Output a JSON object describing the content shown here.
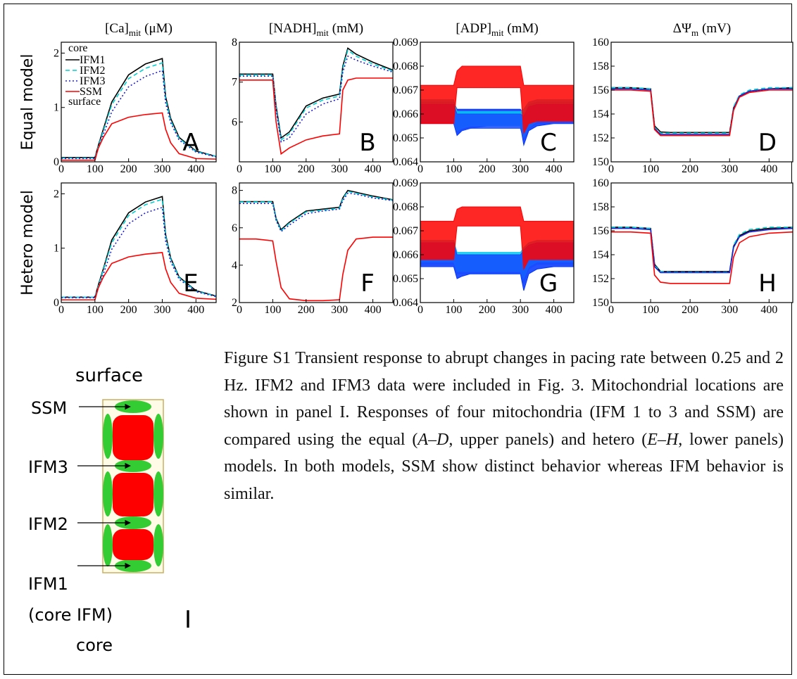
{
  "row_labels": [
    "Equal model",
    "Hetero model"
  ],
  "chart_data": [
    {
      "type": "line",
      "title": {
        "main": "[Ca]",
        "sub": "mit",
        "unit": "(μM)"
      },
      "panel": "A",
      "legend": "upper left",
      "annotations": [
        "core",
        "surface"
      ],
      "xlim": [
        0,
        460
      ],
      "xticks": [
        0,
        100,
        200,
        300,
        400
      ],
      "ylim": [
        0,
        2.2
      ],
      "yticks": [
        0,
        1,
        2
      ],
      "x": [
        0,
        50,
        100,
        110,
        125,
        150,
        200,
        250,
        300,
        310,
        325,
        350,
        400,
        460
      ],
      "series": [
        {
          "name": "IFM1",
          "color": "#000000",
          "style": "solid",
          "values": [
            0.08,
            0.08,
            0.08,
            0.3,
            0.6,
            1.1,
            1.6,
            1.8,
            1.9,
            1.2,
            0.8,
            0.45,
            0.2,
            0.1
          ]
        },
        {
          "name": "IFM2",
          "color": "#00d0d0",
          "style": "dashed",
          "values": [
            0.07,
            0.07,
            0.07,
            0.28,
            0.57,
            1.05,
            1.53,
            1.72,
            1.82,
            1.15,
            0.76,
            0.43,
            0.19,
            0.1
          ]
        },
        {
          "name": "IFM3",
          "color": "#2020d0",
          "style": "dotted",
          "values": [
            0.06,
            0.06,
            0.06,
            0.25,
            0.5,
            0.92,
            1.38,
            1.57,
            1.68,
            1.08,
            0.72,
            0.4,
            0.18,
            0.09
          ]
        },
        {
          "name": "SSM",
          "color": "#ff0000",
          "style": "solid",
          "values": [
            0.03,
            0.03,
            0.03,
            0.25,
            0.45,
            0.7,
            0.82,
            0.87,
            0.9,
            0.6,
            0.35,
            0.15,
            0.06,
            0.05
          ]
        }
      ]
    },
    {
      "type": "line",
      "title": {
        "main": "[NADH]",
        "sub": "mit",
        "unit": "(mM)"
      },
      "panel": "B",
      "xlim": [
        0,
        460
      ],
      "xticks": [
        0,
        100,
        200,
        300,
        400
      ],
      "ylim": [
        5,
        8
      ],
      "yticks": [
        6,
        7,
        8
      ],
      "x": [
        0,
        50,
        100,
        110,
        125,
        150,
        200,
        250,
        300,
        310,
        325,
        350,
        400,
        460
      ],
      "series": [
        {
          "color": "#000000",
          "style": "solid",
          "values": [
            7.2,
            7.2,
            7.2,
            6.4,
            5.6,
            5.75,
            6.4,
            6.6,
            6.7,
            7.4,
            7.85,
            7.7,
            7.5,
            7.3
          ]
        },
        {
          "color": "#00d0d0",
          "style": "dashed",
          "values": [
            7.18,
            7.18,
            7.18,
            6.35,
            5.55,
            5.7,
            6.35,
            6.55,
            6.65,
            7.35,
            7.8,
            7.65,
            7.45,
            7.28
          ]
        },
        {
          "color": "#2020d0",
          "style": "dotted",
          "values": [
            7.15,
            7.15,
            7.15,
            6.3,
            5.5,
            5.6,
            6.2,
            6.45,
            6.58,
            7.25,
            7.65,
            7.55,
            7.4,
            7.25
          ]
        },
        {
          "color": "#ff0000",
          "style": "solid",
          "values": [
            7.05,
            7.05,
            7.05,
            6.0,
            5.2,
            5.35,
            5.55,
            5.65,
            5.7,
            6.8,
            7.05,
            7.1,
            7.1,
            7.1
          ]
        }
      ]
    },
    {
      "type": "band",
      "title": {
        "main": "[ADP]",
        "sub": "mit",
        "unit": "(mM)"
      },
      "panel": "C",
      "xlim": [
        0,
        460
      ],
      "xticks": [
        0,
        100,
        200,
        300,
        400
      ],
      "ylim": [
        0.064,
        0.069
      ],
      "yticks": [
        0.064,
        0.065,
        0.066,
        0.067,
        0.068,
        0.069
      ],
      "x": [
        0,
        50,
        100,
        110,
        125,
        150,
        200,
        250,
        300,
        310,
        325,
        350,
        400,
        460
      ],
      "series": [
        {
          "color": "#0033ff",
          "upper": [
            0.0665,
            0.0665,
            0.0665,
            0.0662,
            0.0662,
            0.0662,
            0.0662,
            0.0662,
            0.0662,
            0.066,
            0.0664,
            0.0665,
            0.0665,
            0.0665
          ],
          "lower": [
            0.0656,
            0.0656,
            0.0656,
            0.0651,
            0.0653,
            0.0654,
            0.0655,
            0.0655,
            0.0655,
            0.0647,
            0.0653,
            0.0655,
            0.0656,
            0.0656
          ]
        },
        {
          "color": "#00ccee",
          "upper": [
            0.0666,
            0.0666,
            0.0666,
            0.0661,
            0.0661,
            0.0661,
            0.0661,
            0.0661,
            0.0661,
            0.0662,
            0.0665,
            0.0666,
            0.0666,
            0.0666
          ],
          "lower": [
            0.0657,
            0.0657,
            0.0657,
            0.0653,
            0.0654,
            0.0655,
            0.0655,
            0.0655,
            0.0655,
            0.065,
            0.0654,
            0.0657,
            0.0657,
            0.0657
          ]
        },
        {
          "color": "#1a4cff",
          "upper": [
            0.0664,
            0.0664,
            0.0664,
            0.066,
            0.066,
            0.066,
            0.066,
            0.066,
            0.066,
            0.0659,
            0.0663,
            0.0664,
            0.0664,
            0.0664
          ],
          "lower": [
            0.0656,
            0.0656,
            0.0656,
            0.0652,
            0.0653,
            0.0654,
            0.0654,
            0.0654,
            0.0654,
            0.0649,
            0.0654,
            0.0656,
            0.0656,
            0.0656
          ]
        },
        {
          "color": "#ff0000",
          "upper": [
            0.0672,
            0.0672,
            0.0672,
            0.0678,
            0.068,
            0.068,
            0.068,
            0.068,
            0.068,
            0.0672,
            0.0672,
            0.0672,
            0.0672,
            0.0672
          ],
          "lower": [
            0.0656,
            0.0656,
            0.0656,
            0.0671,
            0.0671,
            0.0671,
            0.0671,
            0.0671,
            0.0671,
            0.0652,
            0.0656,
            0.0657,
            0.0657,
            0.0657
          ]
        }
      ]
    },
    {
      "type": "line",
      "title": {
        "main": "ΔΨ",
        "sub": "m",
        "unit": "(mV)"
      },
      "panel": "D",
      "xlim": [
        0,
        460
      ],
      "xticks": [
        0,
        100,
        200,
        300,
        400
      ],
      "ylim": [
        150,
        160
      ],
      "yticks": [
        150,
        152,
        154,
        156,
        158,
        160
      ],
      "x": [
        0,
        50,
        100,
        110,
        125,
        150,
        200,
        250,
        300,
        310,
        325,
        350,
        400,
        460
      ],
      "series": [
        {
          "color": "#000000",
          "style": "solid",
          "values": [
            156.2,
            156.2,
            156.1,
            153.0,
            152.5,
            152.45,
            152.45,
            152.45,
            152.45,
            154.5,
            155.5,
            155.9,
            156.1,
            156.2
          ]
        },
        {
          "color": "#00d0d0",
          "style": "dashed",
          "values": [
            156.2,
            156.2,
            156.1,
            152.9,
            152.4,
            152.4,
            152.4,
            152.4,
            152.4,
            154.6,
            155.6,
            156.0,
            156.2,
            156.2
          ]
        },
        {
          "color": "#2020d0",
          "style": "solid",
          "values": [
            156.1,
            156.1,
            156.0,
            152.8,
            152.3,
            152.3,
            152.3,
            152.3,
            152.3,
            154.4,
            155.5,
            155.9,
            156.1,
            156.1
          ]
        },
        {
          "color": "#ff0000",
          "style": "solid",
          "values": [
            156.0,
            156.0,
            155.9,
            152.7,
            152.2,
            152.2,
            152.2,
            152.2,
            152.2,
            154.3,
            155.4,
            155.8,
            156.0,
            156.0
          ]
        }
      ]
    },
    {
      "type": "line",
      "panel": "E",
      "xlim": [
        0,
        460
      ],
      "xticks": [
        0,
        100,
        200,
        300,
        400
      ],
      "ylim": [
        0,
        2.2
      ],
      "yticks": [
        0,
        1,
        2
      ],
      "x": [
        0,
        50,
        100,
        110,
        125,
        150,
        200,
        250,
        300,
        310,
        325,
        350,
        400,
        460
      ],
      "series": [
        {
          "color": "#000000",
          "style": "solid",
          "values": [
            0.1,
            0.1,
            0.1,
            0.32,
            0.62,
            1.15,
            1.65,
            1.85,
            1.95,
            1.25,
            0.82,
            0.47,
            0.22,
            0.12
          ]
        },
        {
          "color": "#00d0d0",
          "style": "dashed",
          "values": [
            0.1,
            0.1,
            0.1,
            0.3,
            0.6,
            1.1,
            1.6,
            1.8,
            1.9,
            1.22,
            0.8,
            0.46,
            0.21,
            0.12
          ]
        },
        {
          "color": "#2020d0",
          "style": "dotted",
          "values": [
            0.09,
            0.09,
            0.09,
            0.27,
            0.52,
            0.98,
            1.45,
            1.65,
            1.75,
            1.13,
            0.75,
            0.43,
            0.2,
            0.11
          ]
        },
        {
          "color": "#ff0000",
          "style": "solid",
          "values": [
            0.05,
            0.05,
            0.05,
            0.27,
            0.47,
            0.72,
            0.84,
            0.89,
            0.92,
            0.62,
            0.37,
            0.17,
            0.08,
            0.06
          ]
        }
      ]
    },
    {
      "type": "line",
      "panel": "F",
      "xlim": [
        0,
        460
      ],
      "xticks": [
        0,
        100,
        200,
        300,
        400
      ],
      "ylim": [
        2,
        8.4
      ],
      "yticks": [
        2,
        4,
        6,
        8
      ],
      "x": [
        0,
        50,
        100,
        110,
        125,
        150,
        200,
        250,
        300,
        310,
        325,
        350,
        400,
        460
      ],
      "series": [
        {
          "color": "#000000",
          "style": "solid",
          "values": [
            7.4,
            7.4,
            7.4,
            6.5,
            5.9,
            6.3,
            6.9,
            7.0,
            7.1,
            7.6,
            8.0,
            7.9,
            7.7,
            7.5
          ]
        },
        {
          "color": "#00d0d0",
          "style": "dashed",
          "values": [
            7.38,
            7.38,
            7.38,
            6.45,
            5.85,
            6.25,
            6.85,
            6.95,
            7.05,
            7.55,
            7.95,
            7.85,
            7.65,
            7.48
          ]
        },
        {
          "color": "#2020d0",
          "style": "dotted",
          "values": [
            7.3,
            7.3,
            7.3,
            6.4,
            5.8,
            6.15,
            6.75,
            6.9,
            7.0,
            7.45,
            7.85,
            7.8,
            7.6,
            7.45
          ]
        },
        {
          "color": "#ff0000",
          "style": "solid",
          "values": [
            5.4,
            5.4,
            5.3,
            4.2,
            2.8,
            2.2,
            2.1,
            2.1,
            2.15,
            3.5,
            4.8,
            5.4,
            5.5,
            5.5
          ]
        }
      ]
    },
    {
      "type": "band",
      "panel": "G",
      "xlim": [
        0,
        460
      ],
      "xticks": [
        0,
        100,
        200,
        300,
        400
      ],
      "ylim": [
        0.064,
        0.069
      ],
      "yticks": [
        0.064,
        0.065,
        0.066,
        0.067,
        0.068,
        0.069
      ],
      "x": [
        0,
        50,
        100,
        110,
        125,
        150,
        200,
        250,
        300,
        310,
        325,
        350,
        400,
        460
      ],
      "series": [
        {
          "color": "#0033ff",
          "upper": [
            0.0664,
            0.0664,
            0.0664,
            0.066,
            0.066,
            0.066,
            0.066,
            0.066,
            0.066,
            0.0661,
            0.0663,
            0.0664,
            0.0664,
            0.0664
          ],
          "lower": [
            0.0655,
            0.0655,
            0.0655,
            0.065,
            0.0651,
            0.0652,
            0.0652,
            0.0652,
            0.0652,
            0.0645,
            0.0652,
            0.0654,
            0.0655,
            0.0655
          ]
        },
        {
          "color": "#00ccee",
          "upper": [
            0.0666,
            0.0666,
            0.0666,
            0.0661,
            0.0661,
            0.0661,
            0.0661,
            0.0661,
            0.0661,
            0.0663,
            0.0665,
            0.0666,
            0.0666,
            0.0666
          ],
          "lower": [
            0.0657,
            0.0657,
            0.0657,
            0.0653,
            0.0653,
            0.0653,
            0.0653,
            0.0653,
            0.0653,
            0.065,
            0.0655,
            0.0657,
            0.0657,
            0.0657
          ]
        },
        {
          "color": "#1a4cff",
          "upper": [
            0.0665,
            0.0665,
            0.0665,
            0.066,
            0.066,
            0.066,
            0.066,
            0.066,
            0.066,
            0.0662,
            0.0664,
            0.0665,
            0.0665,
            0.0665
          ],
          "lower": [
            0.0656,
            0.0656,
            0.0656,
            0.0652,
            0.0652,
            0.0652,
            0.0652,
            0.0652,
            0.0652,
            0.0648,
            0.0654,
            0.0656,
            0.0656,
            0.0656
          ]
        },
        {
          "color": "#ff0000",
          "upper": [
            0.0674,
            0.0674,
            0.0674,
            0.0679,
            0.068,
            0.068,
            0.068,
            0.068,
            0.068,
            0.0674,
            0.0674,
            0.0674,
            0.0674,
            0.0674
          ],
          "lower": [
            0.0658,
            0.0658,
            0.0658,
            0.0672,
            0.0672,
            0.0672,
            0.0672,
            0.0672,
            0.0672,
            0.0654,
            0.0658,
            0.0658,
            0.0658,
            0.0658
          ]
        }
      ]
    },
    {
      "type": "line",
      "panel": "H",
      "xlim": [
        0,
        460
      ],
      "xticks": [
        0,
        100,
        200,
        300,
        400
      ],
      "ylim": [
        150,
        160
      ],
      "yticks": [
        150,
        152,
        154,
        156,
        158,
        160
      ],
      "x": [
        0,
        50,
        100,
        110,
        125,
        150,
        200,
        250,
        300,
        310,
        325,
        350,
        400,
        460
      ],
      "series": [
        {
          "color": "#000000",
          "style": "solid",
          "values": [
            156.3,
            156.3,
            156.2,
            153.2,
            152.6,
            152.6,
            152.6,
            152.6,
            152.6,
            154.7,
            155.6,
            156.0,
            156.2,
            156.3
          ]
        },
        {
          "color": "#00d0d0",
          "style": "dashed",
          "values": [
            156.3,
            156.3,
            156.2,
            153.1,
            152.6,
            152.55,
            152.55,
            152.55,
            152.55,
            154.8,
            155.7,
            156.1,
            156.3,
            156.3
          ]
        },
        {
          "color": "#2020d0",
          "style": "solid",
          "values": [
            156.2,
            156.2,
            156.1,
            153.0,
            152.5,
            152.5,
            152.5,
            152.5,
            152.5,
            154.6,
            155.5,
            155.9,
            156.1,
            156.2
          ]
        },
        {
          "color": "#ff0000",
          "style": "solid",
          "values": [
            155.9,
            155.9,
            155.8,
            152.3,
            151.7,
            151.6,
            151.6,
            151.6,
            151.6,
            153.8,
            155.0,
            155.5,
            155.8,
            155.9
          ]
        }
      ]
    }
  ],
  "caption": [
    "Figure S1 Transient response to abrupt changes in pacing rate between 0.25 and 2 Hz. IFM2 and IFM3 data were included in Fig. 3. Mitochondrial locations are shown in panel I. Responses of four mitochondria (IFM 1 to 3 and SSM) are compared using the equal (",
    "A–D",
    ", upper panels) and hetero (",
    "E–H",
    ", lower panels) models. In both models, SSM show distinct behavior whereas IFM behavior is similar."
  ],
  "diagram": {
    "top": "surface",
    "mitochondria": [
      "SSM",
      "IFM3",
      "IFM2",
      "IFM1"
    ],
    "note": "(core IFM)",
    "bottom": "core",
    "panel": "I"
  }
}
